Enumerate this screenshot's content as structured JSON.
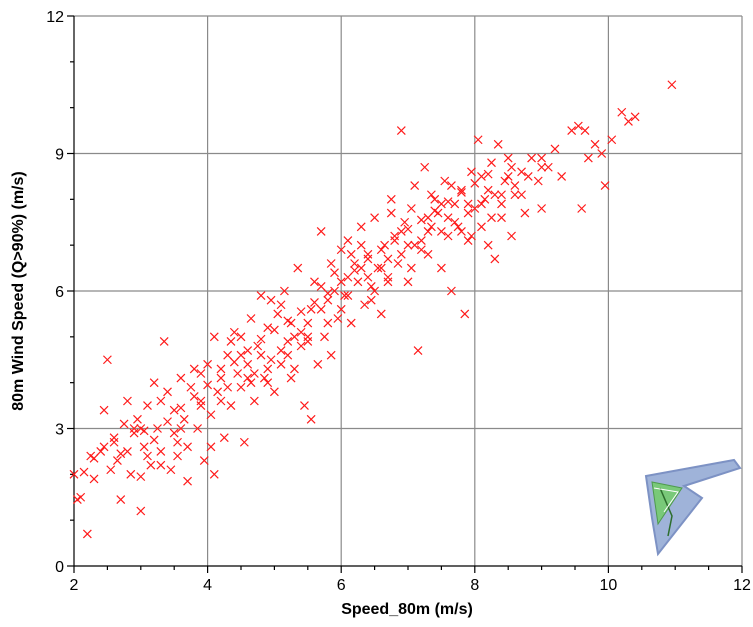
{
  "chart_data": {
    "type": "scatter",
    "title": "",
    "xlabel": "Speed_80m (m/s)",
    "ylabel": "80m Wind Speed (Q>90%) (m/s)",
    "xlim": [
      2,
      12
    ],
    "ylim": [
      0,
      12
    ],
    "x_ticks": [
      2,
      4,
      6,
      8,
      10,
      12
    ],
    "y_ticks": [
      0,
      3,
      6,
      9,
      12
    ],
    "x_tick_labels": [
      "2",
      "4",
      "6",
      "8",
      "10",
      "12"
    ],
    "y_tick_labels": [
      "0",
      "3",
      "6",
      "9",
      "12"
    ],
    "grid": true,
    "legend": "none",
    "marker": "x",
    "colors": {
      "marker": "#ff1a1a",
      "grid": "#8a8a8a",
      "axis": "#000000",
      "background": "#ffffff"
    },
    "logo_icon": "kite-logo-icon",
    "series": [
      {
        "points": [
          [
            2.0,
            2.0
          ],
          [
            2.05,
            1.45
          ],
          [
            2.1,
            1.5
          ],
          [
            2.2,
            0.7
          ],
          [
            2.3,
            1.9
          ],
          [
            2.3,
            2.35
          ],
          [
            2.45,
            2.6
          ],
          [
            2.45,
            3.4
          ],
          [
            2.5,
            4.5
          ],
          [
            2.55,
            2.1
          ],
          [
            2.6,
            2.8
          ],
          [
            2.65,
            2.3
          ],
          [
            2.7,
            1.45
          ],
          [
            2.75,
            3.1
          ],
          [
            2.8,
            2.5
          ],
          [
            2.85,
            2.0
          ],
          [
            2.9,
            3.0
          ],
          [
            2.95,
            3.2
          ],
          [
            3.0,
            3.0
          ],
          [
            3.0,
            1.2
          ],
          [
            3.05,
            2.6
          ],
          [
            3.1,
            3.5
          ],
          [
            3.15,
            2.2
          ],
          [
            3.2,
            4.0
          ],
          [
            3.25,
            3.0
          ],
          [
            3.3,
            2.5
          ],
          [
            3.35,
            4.9
          ],
          [
            3.4,
            3.8
          ],
          [
            3.45,
            2.1
          ],
          [
            3.5,
            3.4
          ],
          [
            3.55,
            2.7
          ],
          [
            3.6,
            4.1
          ],
          [
            3.65,
            3.2
          ],
          [
            3.7,
            2.6
          ],
          [
            3.75,
            3.9
          ],
          [
            3.8,
            4.3
          ],
          [
            3.85,
            3.0
          ],
          [
            3.9,
            3.6
          ],
          [
            3.95,
            2.3
          ],
          [
            4.0,
            4.4
          ],
          [
            4.05,
            3.3
          ],
          [
            4.1,
            2.0
          ],
          [
            4.1,
            5.0
          ],
          [
            4.15,
            3.8
          ],
          [
            4.2,
            4.1
          ],
          [
            4.25,
            2.8
          ],
          [
            4.3,
            4.6
          ],
          [
            4.35,
            3.5
          ],
          [
            4.4,
            5.1
          ],
          [
            4.45,
            4.2
          ],
          [
            4.5,
            3.9
          ],
          [
            4.55,
            2.7
          ],
          [
            4.6,
            4.4
          ],
          [
            4.65,
            5.4
          ],
          [
            4.7,
            3.6
          ],
          [
            4.75,
            4.8
          ],
          [
            4.8,
            5.9
          ],
          [
            4.85,
            4.1
          ],
          [
            4.9,
            5.2
          ],
          [
            4.95,
            4.5
          ],
          [
            5.0,
            3.8
          ],
          [
            5.05,
            5.5
          ],
          [
            5.1,
            4.7
          ],
          [
            5.15,
            6.0
          ],
          [
            5.2,
            4.9
          ],
          [
            5.25,
            5.3
          ],
          [
            5.3,
            4.3
          ],
          [
            5.35,
            6.5
          ],
          [
            5.4,
            5.1
          ],
          [
            5.45,
            3.5
          ],
          [
            5.5,
            4.9
          ],
          [
            5.55,
            5.6
          ],
          [
            5.6,
            6.2
          ],
          [
            5.65,
            4.4
          ],
          [
            5.7,
            7.3
          ],
          [
            5.75,
            5.0
          ],
          [
            5.8,
            5.8
          ],
          [
            5.85,
            4.6
          ],
          [
            5.9,
            6.4
          ],
          [
            5.95,
            5.4
          ],
          [
            6.0,
            6.9
          ],
          [
            6.05,
            5.9
          ],
          [
            6.1,
            7.1
          ],
          [
            6.15,
            5.3
          ],
          [
            6.2,
            6.6
          ],
          [
            6.25,
            6.2
          ],
          [
            6.3,
            7.4
          ],
          [
            6.35,
            5.7
          ],
          [
            6.4,
            6.8
          ],
          [
            6.45,
            6.1
          ],
          [
            6.5,
            7.6
          ],
          [
            6.55,
            6.5
          ],
          [
            6.6,
            5.5
          ],
          [
            6.65,
            7.0
          ],
          [
            6.7,
            6.3
          ],
          [
            6.75,
            8.0
          ],
          [
            6.8,
            7.2
          ],
          [
            6.85,
            6.6
          ],
          [
            6.9,
            9.5
          ],
          [
            6.95,
            7.5
          ],
          [
            7.0,
            6.2
          ],
          [
            7.05,
            7.8
          ],
          [
            7.1,
            8.3
          ],
          [
            7.15,
            4.7
          ],
          [
            7.2,
            7.1
          ],
          [
            7.25,
            8.7
          ],
          [
            7.3,
            6.8
          ],
          [
            7.35,
            7.4
          ],
          [
            7.4,
            8.0
          ],
          [
            7.45,
            7.7
          ],
          [
            7.5,
            6.5
          ],
          [
            7.55,
            8.4
          ],
          [
            7.6,
            7.2
          ],
          [
            7.65,
            6.0
          ],
          [
            7.7,
            7.9
          ],
          [
            7.75,
            7.4
          ],
          [
            7.8,
            8.2
          ],
          [
            7.85,
            5.5
          ],
          [
            7.9,
            7.1
          ],
          [
            7.95,
            8.6
          ],
          [
            8.0,
            7.8
          ],
          [
            8.05,
            9.3
          ],
          [
            8.1,
            7.4
          ],
          [
            8.15,
            8.0
          ],
          [
            8.2,
            7.0
          ],
          [
            8.25,
            8.8
          ],
          [
            8.3,
            6.7
          ],
          [
            8.35,
            9.2
          ],
          [
            8.4,
            7.6
          ],
          [
            8.45,
            8.4
          ],
          [
            8.5,
            8.9
          ],
          [
            8.55,
            7.2
          ],
          [
            8.6,
            8.1
          ],
          [
            8.7,
            8.6
          ],
          [
            8.75,
            7.7
          ],
          [
            8.85,
            8.9
          ],
          [
            8.95,
            8.4
          ],
          [
            9.0,
            7.8
          ],
          [
            9.1,
            8.7
          ],
          [
            9.2,
            9.1
          ],
          [
            9.3,
            8.5
          ],
          [
            9.45,
            9.5
          ],
          [
            9.55,
            9.6
          ],
          [
            9.6,
            7.8
          ],
          [
            9.65,
            9.5
          ],
          [
            9.7,
            8.9
          ],
          [
            9.8,
            9.2
          ],
          [
            9.9,
            9.0
          ],
          [
            9.95,
            8.3
          ],
          [
            10.05,
            9.3
          ],
          [
            10.2,
            9.9
          ],
          [
            10.3,
            9.7
          ],
          [
            10.4,
            9.8
          ],
          [
            10.95,
            10.5
          ],
          [
            3.0,
            1.95
          ],
          [
            3.7,
            1.85
          ],
          [
            2.25,
            2.4
          ],
          [
            2.6,
            2.7
          ],
          [
            2.8,
            3.6
          ],
          [
            3.05,
            2.95
          ],
          [
            3.5,
            2.9
          ],
          [
            3.9,
            3.5
          ],
          [
            4.3,
            3.9
          ],
          [
            4.6,
            4.1
          ],
          [
            4.9,
            4.3
          ],
          [
            5.2,
            4.6
          ],
          [
            5.5,
            5.0
          ],
          [
            5.8,
            5.3
          ],
          [
            6.1,
            5.9
          ],
          [
            6.4,
            6.3
          ],
          [
            6.7,
            6.7
          ],
          [
            7.0,
            7.0
          ],
          [
            7.3,
            7.3
          ],
          [
            7.6,
            7.6
          ],
          [
            7.9,
            7.9
          ],
          [
            8.2,
            8.2
          ],
          [
            8.5,
            8.5
          ],
          [
            2.15,
            2.05
          ],
          [
            2.4,
            2.5
          ],
          [
            2.7,
            2.45
          ],
          [
            3.2,
            2.75
          ],
          [
            3.4,
            3.15
          ],
          [
            3.6,
            3.45
          ],
          [
            3.8,
            3.7
          ],
          [
            4.0,
            3.95
          ],
          [
            4.2,
            4.3
          ],
          [
            4.4,
            4.45
          ],
          [
            4.6,
            4.7
          ],
          [
            4.8,
            4.95
          ],
          [
            5.0,
            5.15
          ],
          [
            5.2,
            5.35
          ],
          [
            5.4,
            5.55
          ],
          [
            5.6,
            5.75
          ],
          [
            5.8,
            5.95
          ],
          [
            6.0,
            6.2
          ],
          [
            6.2,
            6.45
          ],
          [
            6.4,
            6.7
          ],
          [
            6.6,
            6.9
          ],
          [
            6.8,
            7.1
          ],
          [
            7.0,
            7.35
          ],
          [
            7.2,
            7.55
          ],
          [
            7.4,
            7.75
          ],
          [
            7.6,
            7.95
          ],
          [
            7.8,
            8.15
          ],
          [
            8.0,
            8.35
          ],
          [
            8.2,
            8.55
          ],
          [
            8.4,
            8.1
          ],
          [
            8.6,
            8.3
          ],
          [
            8.8,
            8.5
          ],
          [
            9.0,
            8.7
          ],
          [
            4.5,
            4.6
          ],
          [
            4.7,
            4.2
          ],
          [
            4.9,
            4.0
          ],
          [
            5.1,
            4.4
          ],
          [
            5.3,
            5.0
          ],
          [
            5.5,
            5.3
          ],
          [
            5.7,
            5.6
          ],
          [
            5.9,
            6.0
          ],
          [
            6.1,
            6.3
          ],
          [
            6.3,
            6.5
          ],
          [
            6.5,
            6.0
          ],
          [
            6.7,
            6.2
          ],
          [
            6.9,
            6.8
          ],
          [
            7.1,
            7.0
          ],
          [
            7.3,
            7.6
          ],
          [
            7.5,
            7.3
          ],
          [
            7.7,
            7.5
          ],
          [
            7.9,
            7.7
          ],
          [
            8.1,
            7.9
          ],
          [
            8.3,
            8.1
          ],
          [
            3.3,
            3.6
          ],
          [
            3.6,
            3.0
          ],
          [
            3.9,
            4.2
          ],
          [
            4.2,
            3.6
          ],
          [
            4.5,
            5.0
          ],
          [
            4.8,
            4.6
          ],
          [
            5.1,
            5.7
          ],
          [
            5.4,
            4.8
          ],
          [
            5.7,
            6.1
          ],
          [
            6.0,
            5.6
          ],
          [
            6.3,
            7.0
          ],
          [
            6.6,
            6.5
          ],
          [
            6.9,
            7.3
          ],
          [
            7.2,
            6.9
          ],
          [
            7.5,
            7.9
          ],
          [
            7.8,
            7.3
          ],
          [
            8.1,
            8.5
          ],
          [
            8.4,
            7.9
          ],
          [
            8.7,
            8.1
          ],
          [
            9.0,
            8.9
          ],
          [
            2.9,
            2.9
          ],
          [
            3.1,
            2.4
          ],
          [
            3.3,
            2.2
          ],
          [
            3.55,
            2.4
          ],
          [
            4.05,
            2.6
          ],
          [
            4.35,
            4.9
          ],
          [
            4.65,
            4.0
          ],
          [
            4.95,
            5.8
          ],
          [
            5.25,
            4.1
          ],
          [
            5.55,
            3.2
          ],
          [
            5.85,
            6.6
          ],
          [
            6.15,
            6.8
          ],
          [
            6.45,
            5.8
          ],
          [
            6.75,
            7.7
          ],
          [
            7.05,
            6.5
          ],
          [
            7.35,
            8.1
          ],
          [
            7.65,
            8.3
          ],
          [
            7.95,
            7.2
          ],
          [
            8.25,
            7.6
          ],
          [
            8.55,
            8.7
          ]
        ]
      }
    ]
  }
}
